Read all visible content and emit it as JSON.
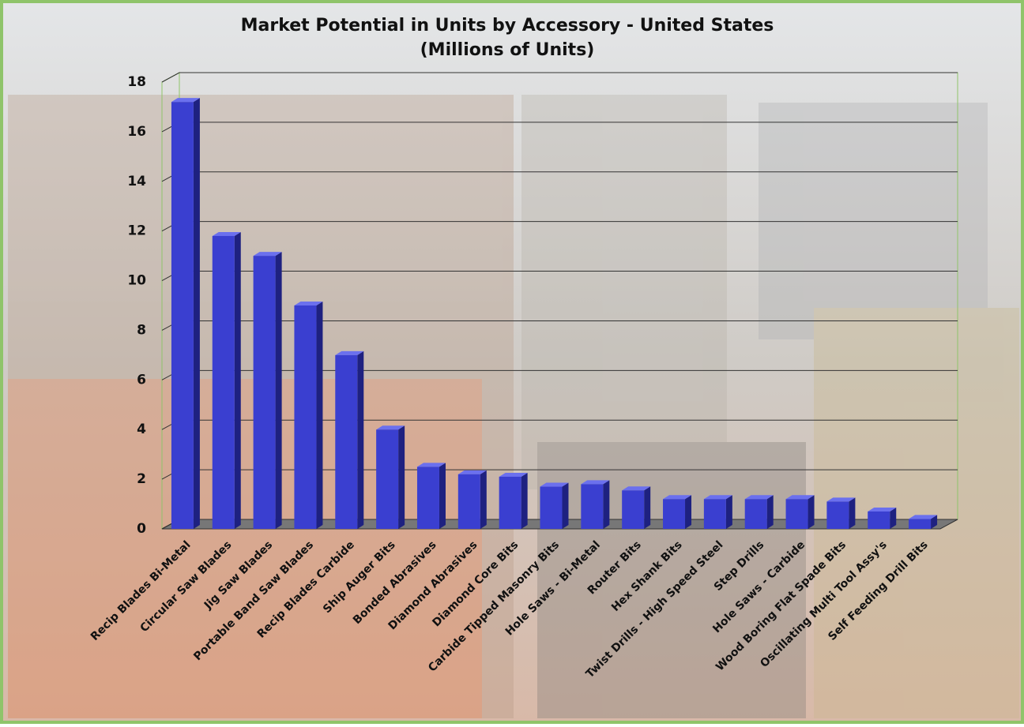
{
  "chart_data": {
    "type": "bar3d",
    "title": "Market Potential in Units by Accessory - United States",
    "subtitle": "(Millions of  Units)",
    "categories": [
      "Recip Blades Bi-Metal",
      "Circular Saw Blades",
      "Jig Saw Blades",
      "Portable Band Saw Blades",
      "Recip Blades Carbide",
      "Ship Auger Bits",
      "Bonded Abrasives",
      "Diamond Abrasives",
      "Diamond Core Bits",
      "Carbide Tipped Masonry Bits",
      "Hole Saws - Bi-Metal",
      "Router Bits",
      "Hex Shank Bits",
      "Twist Drills - High Speed Steel",
      "Step Drills",
      "Hole Saws - Carbide",
      "Wood Boring Flat Spade Bits",
      "Oscillating Multi Tool Assy's",
      "Self Feeding Drill Bits"
    ],
    "values": [
      17.2,
      11.8,
      11.0,
      9.0,
      7.0,
      4.0,
      2.5,
      2.2,
      2.1,
      1.7,
      1.8,
      1.55,
      1.2,
      1.2,
      1.2,
      1.2,
      1.1,
      0.7,
      0.4
    ],
    "color": "#3a3fd0",
    "ylim": [
      0,
      18
    ],
    "yticks": [
      0,
      2,
      4,
      6,
      8,
      10,
      12,
      14,
      16,
      18
    ],
    "grid": true
  }
}
